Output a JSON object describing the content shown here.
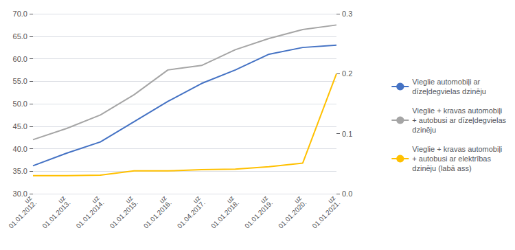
{
  "chart_data": {
    "type": "line",
    "categories": [
      "uz\n01.01.2012.",
      "uz\n01.01.2013.",
      "uz\n01.01.2014.",
      "uz\n01.01.2015.",
      "uz\n01.01.2016.",
      "uz\n01.04.2017.",
      "uz\n01.01.2018.",
      "uz\n01.01.2019.",
      "uz\n01.01.2020.",
      "uz\n01.01.2021."
    ],
    "series": [
      {
        "name": "Vieglie automobiļi ar\ndīzeļdegvielas dzinēju",
        "color": "#4472C4",
        "values": [
          36.2,
          39.0,
          41.5,
          46.0,
          50.5,
          54.5,
          57.5,
          61.0,
          62.5,
          63.0
        ]
      },
      {
        "name": "Vieglie + kravas automobiļi\n+ autobusi ar dīzeļdegvielas\ndzinēju",
        "color": "#A5A5A5",
        "values": [
          42.0,
          44.5,
          47.5,
          52.0,
          57.5,
          58.5,
          62.0,
          64.5,
          66.5,
          67.5
        ]
      },
      {
        "name": "Vieglie + kravas automobiļi\n+ autobusi ar elektrības\ndzinēju (labā ass)",
        "color": "#FFC000",
        "axis": "y2",
        "values": [
          0.03,
          0.03,
          0.031,
          0.038,
          0.038,
          0.04,
          0.041,
          0.045,
          0.051,
          0.2
        ]
      }
    ],
    "ylim": [
      30.0,
      70.0
    ],
    "yticks": [
      {
        "value": 30,
        "label": "30.0"
      },
      {
        "value": 35,
        "label": "35.0"
      },
      {
        "value": 40,
        "label": "40.0"
      },
      {
        "value": 45,
        "label": "45.0"
      },
      {
        "value": 50,
        "label": "50.0"
      },
      {
        "value": 55,
        "label": "55.0"
      },
      {
        "value": 60,
        "label": "60.0"
      },
      {
        "value": 65,
        "label": "65.0"
      },
      {
        "value": 70,
        "label": "70.0"
      }
    ],
    "y2lim": [
      0.0,
      0.3
    ],
    "y2ticks": [
      {
        "value": 0,
        "label": "0.0"
      },
      0.1,
      0.2,
      0.3
    ],
    "grid": true,
    "legend": "right"
  }
}
